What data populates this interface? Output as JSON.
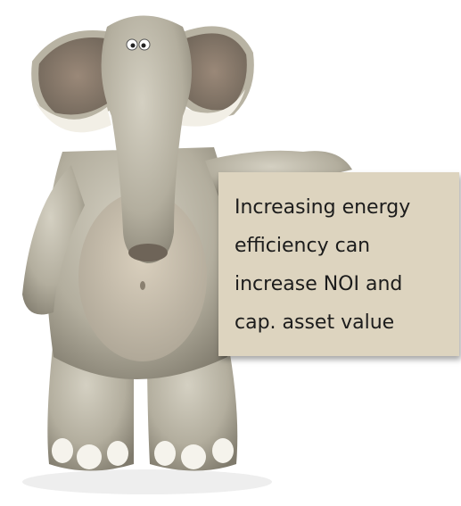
{
  "sign": {
    "lines": [
      "Increasing energy",
      "efficiency can",
      "increase NOI and",
      "cap. asset value"
    ]
  }
}
